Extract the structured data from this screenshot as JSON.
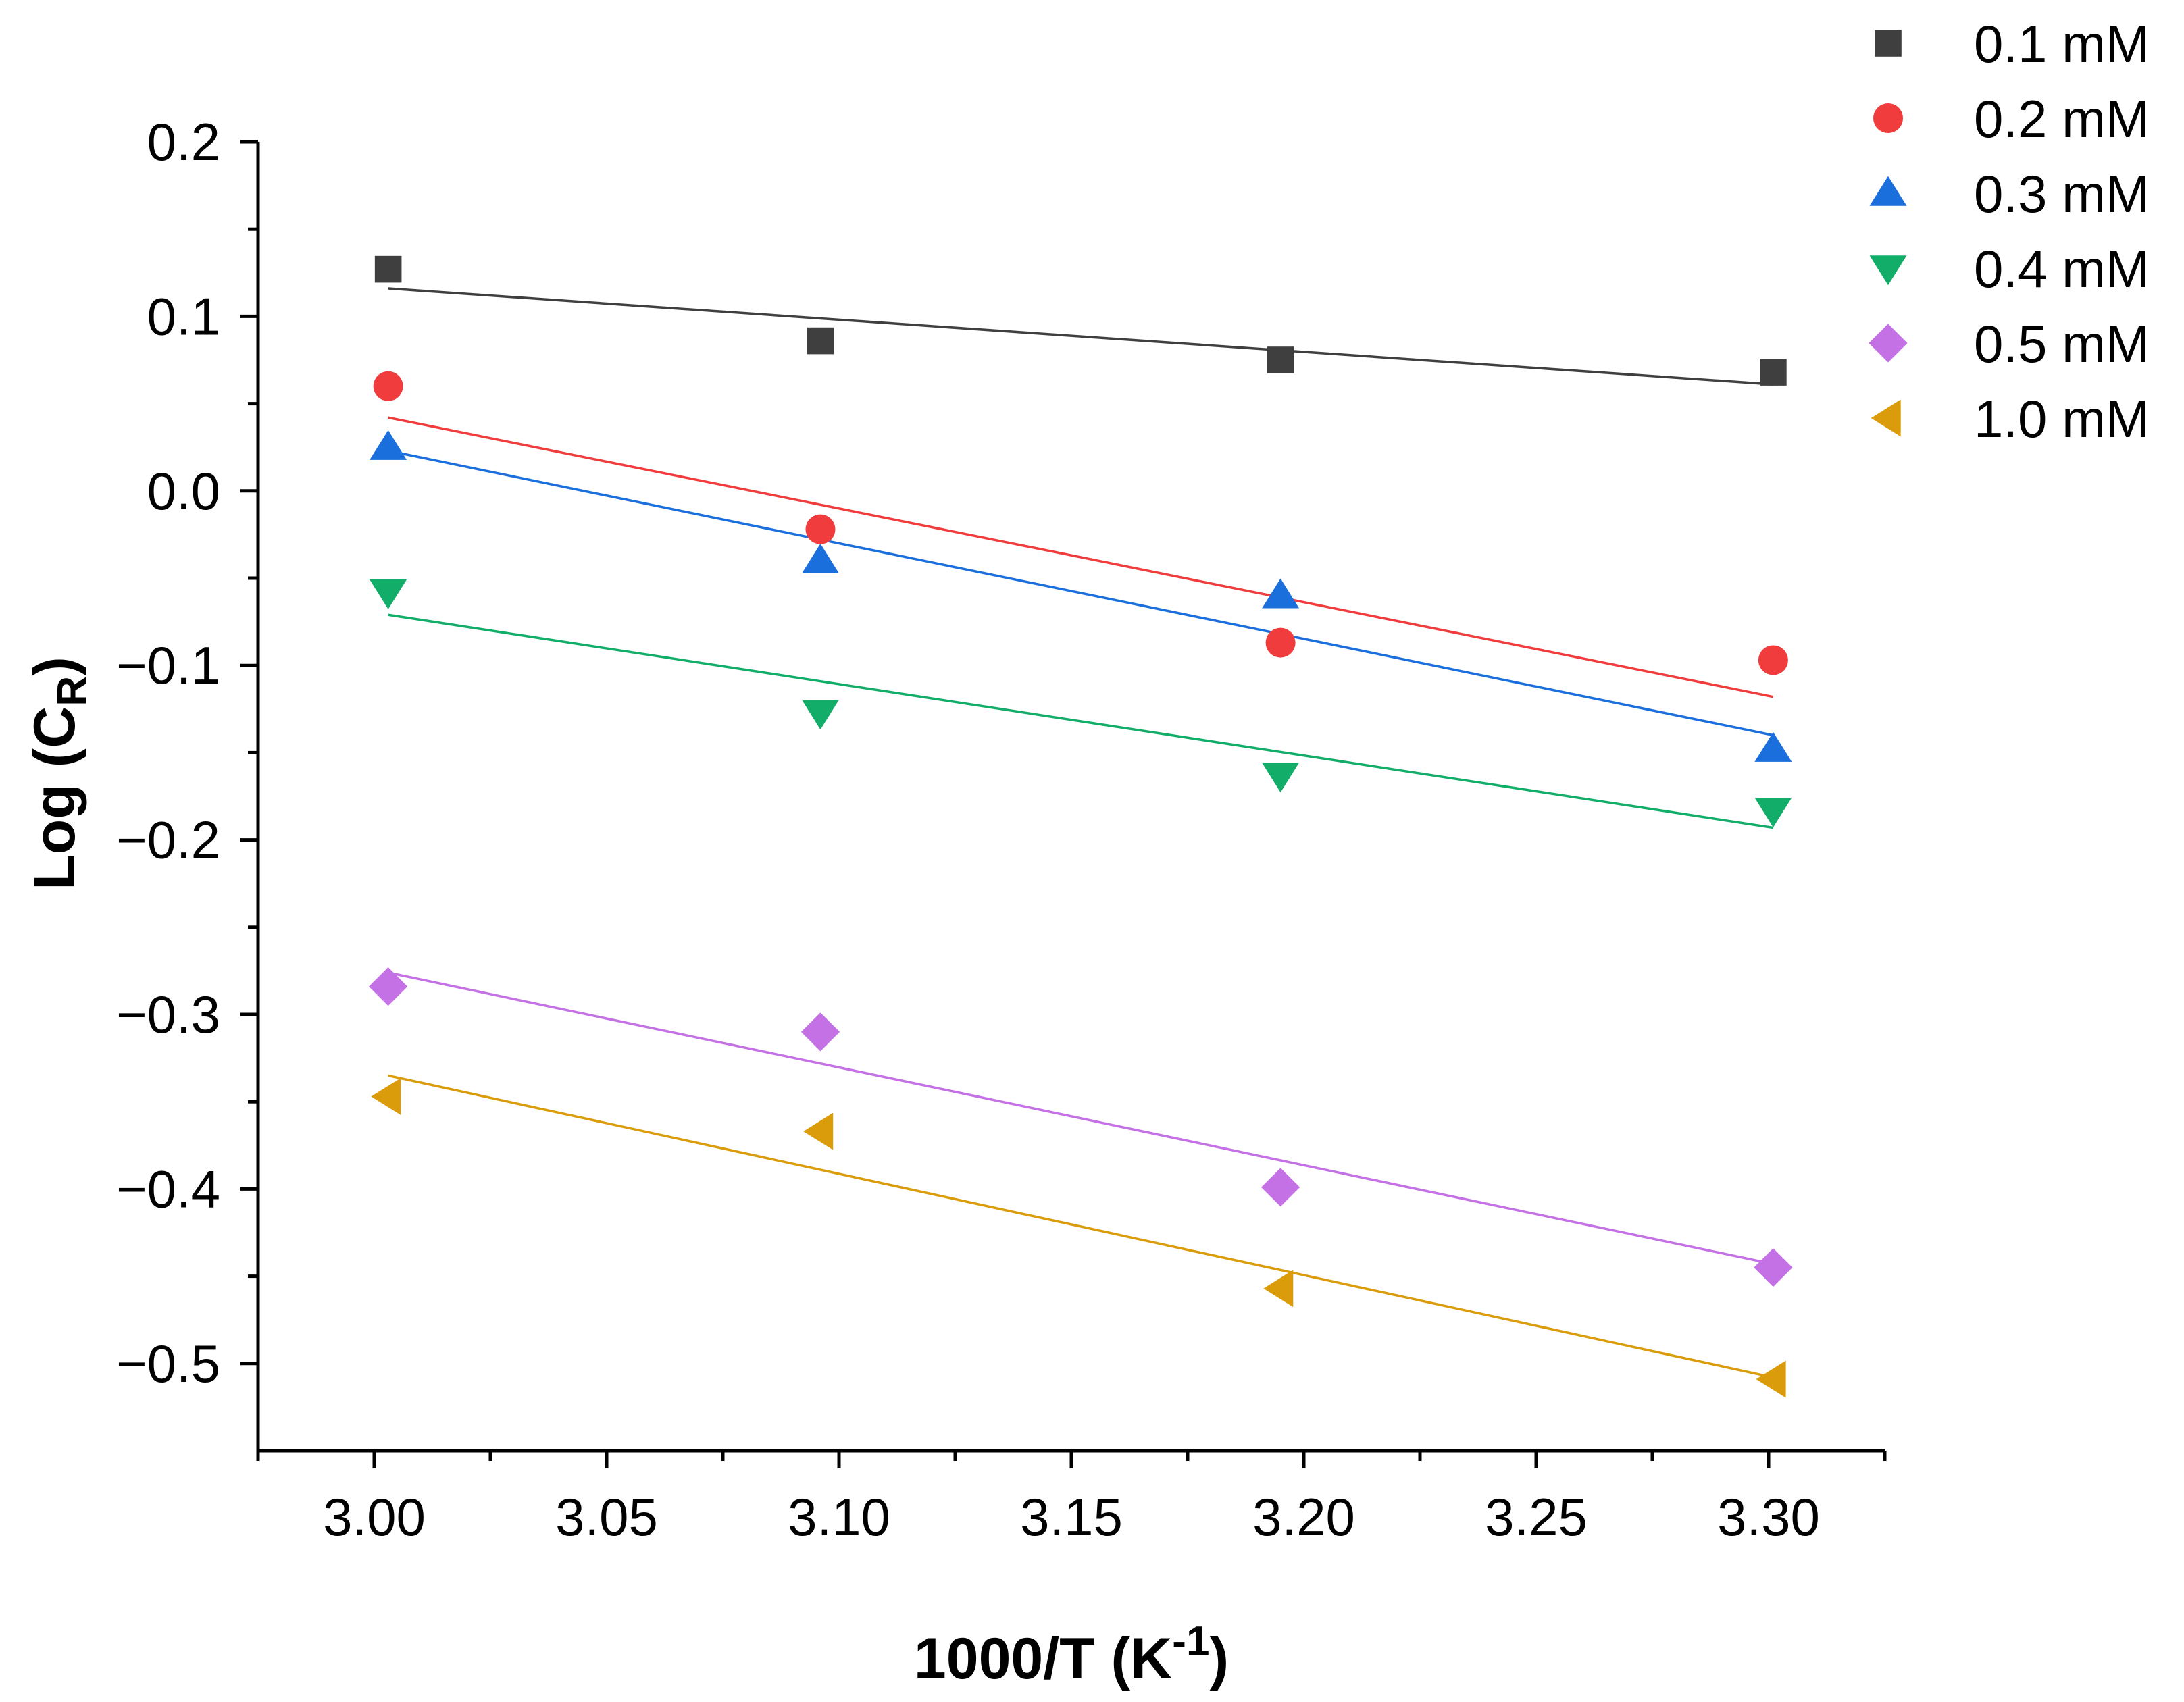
{
  "chart_data": {
    "type": "scatter",
    "title": "",
    "xlabel": {
      "main": "1000/T (K",
      "sup": "-1",
      "tail": ")"
    },
    "ylabel": {
      "main": "Log (C",
      "sub": "R",
      "tail": ")"
    },
    "xlim": [
      2.975,
      3.325
    ],
    "ylim": [
      -0.55,
      0.2
    ],
    "x_ticks": [
      3.0,
      3.05,
      3.1,
      3.15,
      3.2,
      3.25,
      3.3
    ],
    "x_tick_labels": [
      "3.00",
      "3.05",
      "3.10",
      "3.15",
      "3.20",
      "3.25",
      "3.30"
    ],
    "y_ticks": [
      0.2,
      0.1,
      0.0,
      -0.1,
      -0.2,
      -0.3,
      -0.4,
      -0.5
    ],
    "y_tick_labels": [
      "0.2",
      "0.1",
      "0.0",
      "−0.1",
      "−0.2",
      "−0.3",
      "−0.4",
      "−0.5"
    ],
    "grid": false,
    "legend_position": "top-right",
    "x": [
      3.003,
      3.096,
      3.195,
      3.301
    ],
    "series": [
      {
        "name": "0.1 mM",
        "marker": "square",
        "color": "#3f3f3f",
        "values": [
          0.127,
          0.086,
          0.075,
          0.068
        ],
        "fit": [
          0.116,
          0.061
        ]
      },
      {
        "name": "0.2 mM",
        "marker": "circle",
        "color": "#f03c3c",
        "values": [
          0.06,
          -0.022,
          -0.087,
          -0.097
        ],
        "fit": [
          0.042,
          -0.118
        ]
      },
      {
        "name": "0.3 mM",
        "marker": "triangle-up",
        "color": "#1a6fdc",
        "values": [
          0.025,
          -0.04,
          -0.06,
          -0.148
        ],
        "fit": [
          0.023,
          -0.14
        ]
      },
      {
        "name": "0.4 mM",
        "marker": "triangle-down",
        "color": "#13ad6a",
        "values": [
          -0.058,
          -0.127,
          -0.163,
          -0.183
        ],
        "fit": [
          -0.071,
          -0.193
        ]
      },
      {
        "name": "0.5 mM",
        "marker": "diamond",
        "color": "#c471e6",
        "values": [
          -0.284,
          -0.31,
          -0.399,
          -0.445
        ],
        "fit": [
          -0.276,
          -0.443
        ]
      },
      {
        "name": "1.0 mM",
        "marker": "triangle-left",
        "color": "#db9c0c",
        "values": [
          -0.347,
          -0.367,
          -0.457,
          -0.509
        ],
        "fit": [
          -0.335,
          -0.508
        ]
      }
    ]
  }
}
